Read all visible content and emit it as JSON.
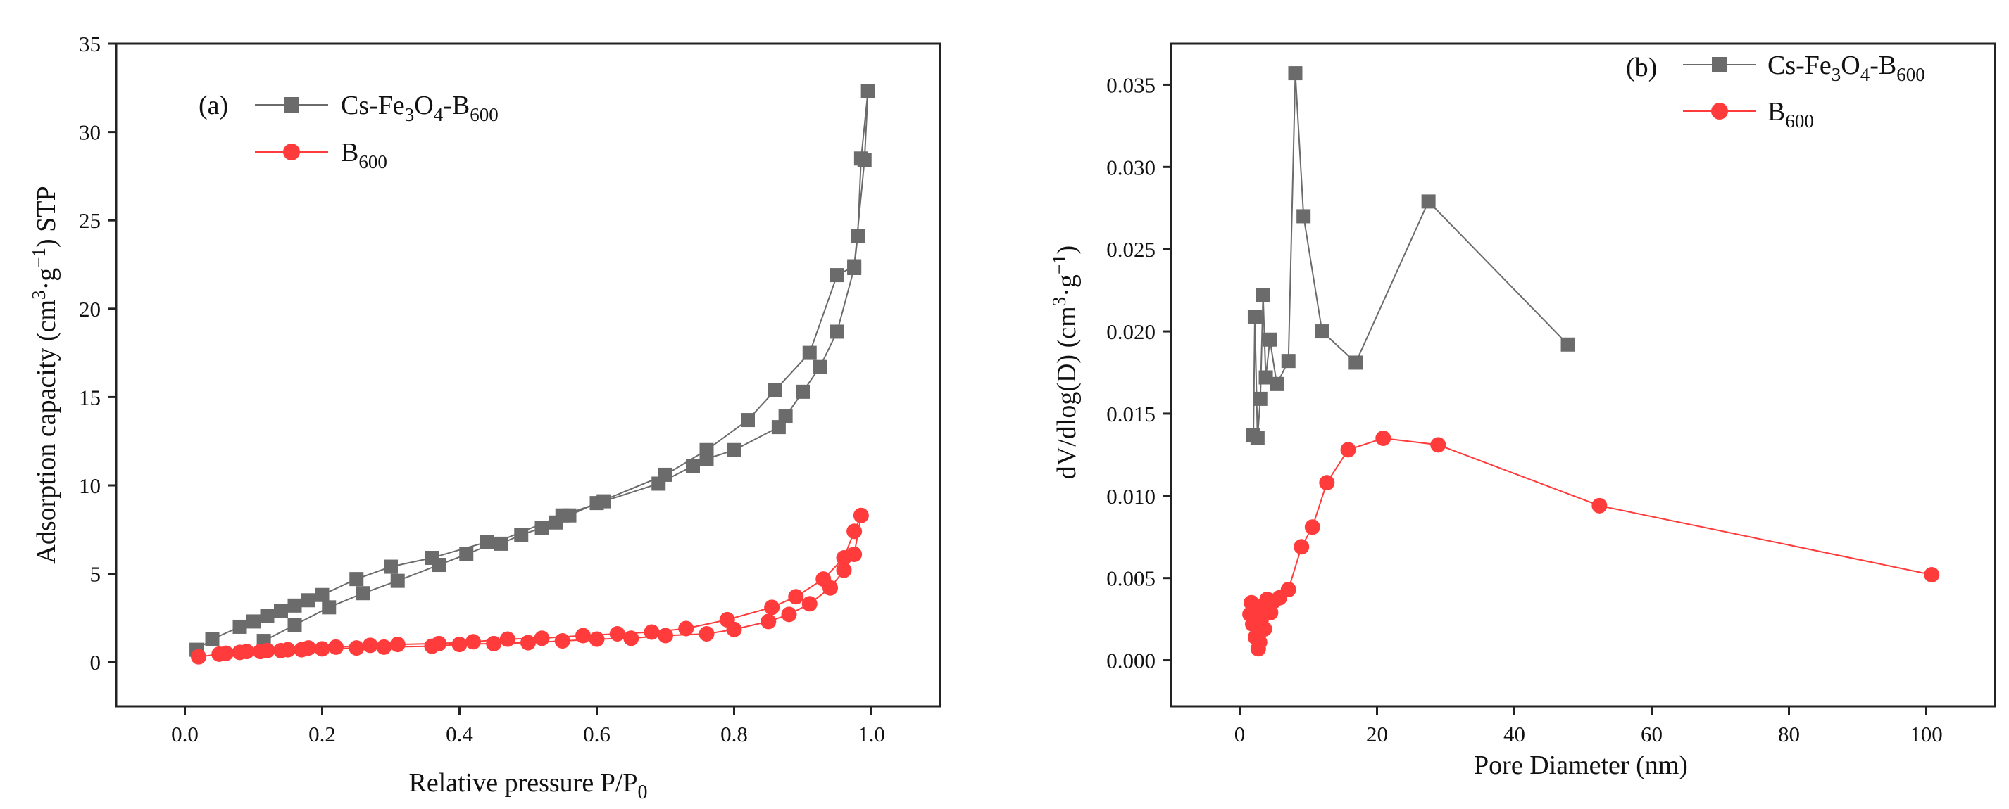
{
  "chart_data": [
    {
      "type": "line",
      "panel_label": "(a)",
      "title": "",
      "xlabel": "Relative pressure P/P",
      "xlabel_sub": "0",
      "ylabel": "Adsorption capacity (cm",
      "ylabel_parts": {
        "sup1": "3",
        "mid": "·g",
        "sup2": "−1",
        "end": ") STP"
      },
      "xlim": [
        -0.1,
        1.1
      ],
      "ylim": [
        -2.5,
        35
      ],
      "xticks": [
        "0.0",
        "0.2",
        "0.4",
        "0.6",
        "0.8",
        "1.0"
      ],
      "yticks": [
        "0",
        "5",
        "10",
        "15",
        "20",
        "25",
        "30",
        "35"
      ],
      "legend_position": "top-left",
      "series": [
        {
          "name": "Cs-Fe3O4-B600",
          "legend": {
            "p1": "Cs-Fe",
            "s1": "3",
            "p2": "O",
            "s2": "4",
            "p3": "-B",
            "s3": "600"
          },
          "color": "#6b6b6b",
          "marker": "square",
          "x": [
            0.017,
            0.04,
            0.08,
            0.1,
            0.12,
            0.14,
            0.16,
            0.18,
            0.2,
            0.25,
            0.3,
            0.36,
            0.44,
            0.46,
            0.49,
            0.52,
            0.54,
            0.56,
            0.6,
            0.7,
            0.76,
            0.82,
            0.86,
            0.91,
            0.95,
            0.975,
            0.99,
            0.995,
            0.985,
            0.98,
            0.975,
            0.95,
            0.925,
            0.9,
            0.875,
            0.865,
            0.8,
            0.76,
            0.74,
            0.69,
            0.61,
            0.55,
            0.41,
            0.37,
            0.31,
            0.26,
            0.21,
            0.16,
            0.115
          ],
          "y": [
            0.7,
            1.3,
            2.0,
            2.3,
            2.6,
            2.9,
            3.2,
            3.5,
            3.8,
            4.7,
            5.4,
            5.9,
            6.8,
            6.7,
            7.2,
            7.6,
            7.9,
            8.3,
            9.0,
            10.6,
            12.0,
            13.7,
            15.4,
            17.5,
            21.9,
            22.4,
            28.4,
            32.3,
            28.5,
            24.1,
            22.3,
            18.7,
            16.7,
            15.3,
            13.9,
            13.3,
            12.0,
            11.5,
            11.1,
            10.1,
            9.1,
            8.3,
            6.1,
            5.5,
            4.6,
            3.9,
            3.1,
            2.1,
            1.2
          ]
        },
        {
          "name": "B600",
          "legend": {
            "p1": "B",
            "s1": "600"
          },
          "color": "#ff3b3b",
          "marker": "circle",
          "x": [
            0.02,
            0.05,
            0.08,
            0.11,
            0.14,
            0.17,
            0.2,
            0.25,
            0.29,
            0.36,
            0.4,
            0.45,
            0.5,
            0.55,
            0.6,
            0.65,
            0.7,
            0.76,
            0.8,
            0.85,
            0.88,
            0.91,
            0.94,
            0.96,
            0.975,
            0.985,
            0.975,
            0.96,
            0.93,
            0.89,
            0.855,
            0.79,
            0.73,
            0.68,
            0.63,
            0.58,
            0.52,
            0.47,
            0.42,
            0.37,
            0.31,
            0.27,
            0.22,
            0.18,
            0.15,
            0.12,
            0.09,
            0.06
          ],
          "y": [
            0.3,
            0.45,
            0.55,
            0.6,
            0.65,
            0.7,
            0.75,
            0.8,
            0.85,
            0.9,
            1.0,
            1.05,
            1.1,
            1.2,
            1.3,
            1.35,
            1.5,
            1.6,
            1.85,
            2.3,
            2.7,
            3.3,
            4.2,
            5.2,
            6.1,
            8.3,
            7.4,
            5.9,
            4.7,
            3.7,
            3.1,
            2.4,
            1.9,
            1.7,
            1.6,
            1.5,
            1.35,
            1.3,
            1.15,
            1.05,
            1.0,
            0.95,
            0.85,
            0.8,
            0.7,
            0.65,
            0.6,
            0.5
          ]
        }
      ]
    },
    {
      "type": "line",
      "panel_label": "(b)",
      "title": "",
      "xlabel": "Pore Diameter (nm)",
      "ylabel": "dV/dlog(D) (cm",
      "ylabel_parts": {
        "sup1": "3",
        "mid": "·g",
        "sup2": "−1",
        "end": ")"
      },
      "xlim": [
        -10,
        110
      ],
      "ylim": [
        -0.0028,
        0.0375
      ],
      "xticks": [
        "0",
        "20",
        "40",
        "60",
        "80",
        "100"
      ],
      "yticks": [
        "0.000",
        "0.005",
        "0.010",
        "0.015",
        "0.020",
        "0.025",
        "0.030",
        "0.035"
      ],
      "legend_position": "top-right",
      "series": [
        {
          "name": "Cs-Fe3O4-B600",
          "legend": {
            "p1": "Cs-Fe",
            "s1": "3",
            "p2": "O",
            "s2": "4",
            "p3": "-B",
            "s3": "600"
          },
          "color": "#6b6b6b",
          "marker": "square",
          "x": [
            2.0,
            2.2,
            2.6,
            3.0,
            3.4,
            3.8,
            4.4,
            5.4,
            7.1,
            8.1,
            9.3,
            12.0,
            16.9,
            27.5,
            47.8
          ],
          "y": [
            0.0137,
            0.0209,
            0.0135,
            0.0159,
            0.0222,
            0.0172,
            0.0195,
            0.0168,
            0.0182,
            0.0357,
            0.027,
            0.02,
            0.0181,
            0.0279,
            0.0192
          ]
        },
        {
          "name": "B600",
          "legend": {
            "p1": "B",
            "s1": "600"
          },
          "color": "#ff3b3b",
          "marker": "circle",
          "x": [
            1.5,
            1.7,
            1.9,
            2.1,
            2.3,
            2.5,
            2.7,
            2.9,
            3.1,
            3.3,
            3.6,
            4.0,
            4.5,
            5.0,
            5.8,
            7.1,
            9.0,
            10.6,
            12.7,
            15.8,
            20.9,
            28.9,
            52.4,
            100.8
          ],
          "y": [
            0.0028,
            0.0035,
            0.0022,
            0.0031,
            0.0014,
            0.0026,
            0.0007,
            0.0011,
            0.0024,
            0.0033,
            0.0019,
            0.0037,
            0.0029,
            0.0036,
            0.0038,
            0.0043,
            0.0069,
            0.0081,
            0.0108,
            0.0128,
            0.0135,
            0.0131,
            0.0094,
            0.0052
          ]
        }
      ]
    }
  ]
}
